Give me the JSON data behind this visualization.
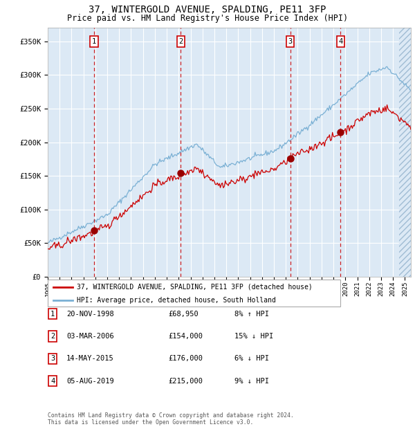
{
  "title_line1": "37, WINTERGOLD AVENUE, SPALDING, PE11 3FP",
  "title_line2": "Price paid vs. HM Land Registry's House Price Index (HPI)",
  "xlim_start": 1995.0,
  "xlim_end": 2025.5,
  "ylim": [
    0,
    370000
  ],
  "yticks": [
    0,
    50000,
    100000,
    150000,
    200000,
    250000,
    300000,
    350000
  ],
  "ytick_labels": [
    "£0",
    "£50K",
    "£100K",
    "£150K",
    "£200K",
    "£250K",
    "£300K",
    "£350K"
  ],
  "sale_dates_decimal": [
    1998.89,
    2006.17,
    2015.37,
    2019.59
  ],
  "sale_prices": [
    68950,
    154000,
    176000,
    215000
  ],
  "sale_labels": [
    "1",
    "2",
    "3",
    "4"
  ],
  "legend_line1": "37, WINTERGOLD AVENUE, SPALDING, PE11 3FP (detached house)",
  "legend_line2": "HPI: Average price, detached house, South Holland",
  "table_rows": [
    [
      "1",
      "20-NOV-1998",
      "£68,950",
      "8% ↑ HPI"
    ],
    [
      "2",
      "03-MAR-2006",
      "£154,000",
      "15% ↓ HPI"
    ],
    [
      "3",
      "14-MAY-2015",
      "£176,000",
      "6% ↓ HPI"
    ],
    [
      "4",
      "05-AUG-2019",
      "£215,000",
      "9% ↓ HPI"
    ]
  ],
  "footer": "Contains HM Land Registry data © Crown copyright and database right 2024.\nThis data is licensed under the Open Government Licence v3.0.",
  "red_line_color": "#cc0000",
  "blue_line_color": "#7ab0d4",
  "background_color": "#dce9f5",
  "grid_color": "#ffffff",
  "vline_color": "#cc0000",
  "sale_marker_color": "#990000"
}
